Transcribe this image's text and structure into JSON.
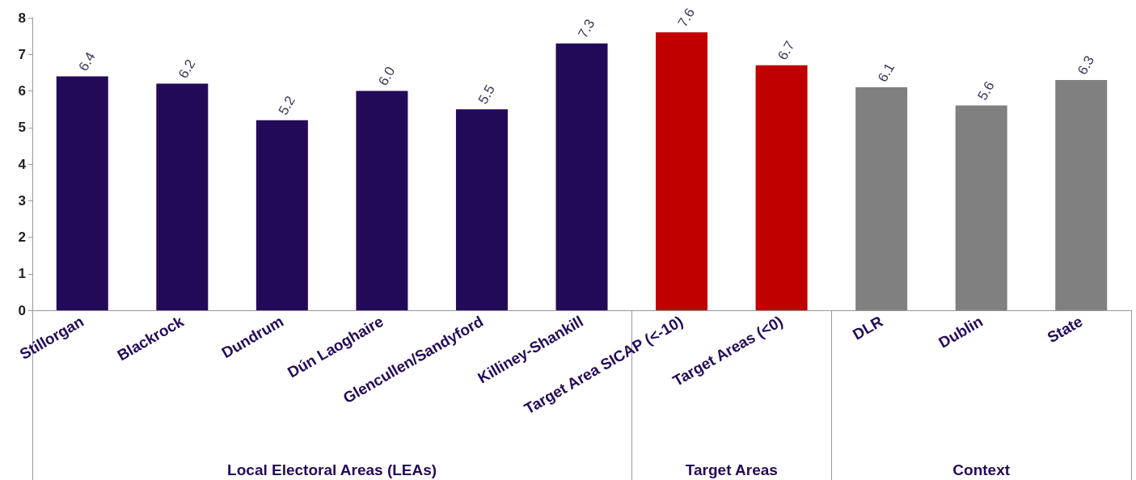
{
  "chart_data": {
    "type": "bar",
    "categories": [
      "Stillorgan",
      "Blackrock",
      "Dundrum",
      "Dún Laoghaire",
      "Glencullen/Sandyford",
      "Killiney-Shankill",
      "Target Area SICAP (<-10)",
      "Target Areas (<0)",
      "DLR",
      "Dublin",
      "State"
    ],
    "values": [
      6.4,
      6.2,
      5.2,
      6.0,
      5.5,
      7.3,
      7.6,
      6.7,
      6.1,
      5.6,
      6.3
    ],
    "colors": [
      "#230a59",
      "#230a59",
      "#230a59",
      "#230a59",
      "#230a59",
      "#230a59",
      "#c00000",
      "#c00000",
      "#808080",
      "#808080",
      "#808080"
    ],
    "ylim": [
      0,
      8
    ],
    "yticks": [
      0,
      1,
      2,
      3,
      4,
      5,
      6,
      7,
      8
    ],
    "value_labels": [
      "6.4",
      "6.2",
      "5.2",
      "6.0",
      "5.5",
      "7.3",
      "7.6",
      "6.7",
      "6.1",
      "5.6",
      "6.3"
    ],
    "grid": false,
    "annotations": [
      "Local Electoral Areas (LEAs)",
      "Target Areas",
      "Context"
    ]
  }
}
